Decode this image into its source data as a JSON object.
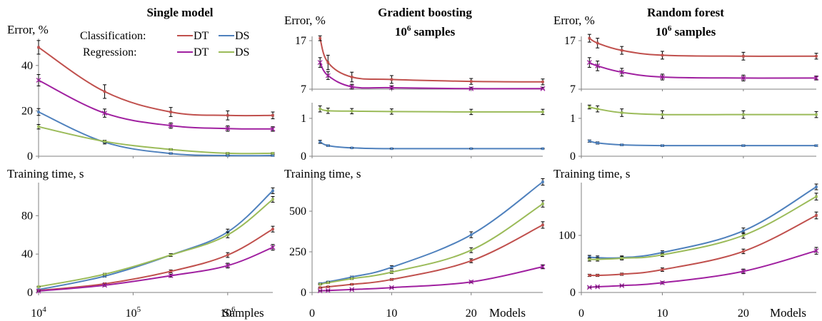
{
  "colors": {
    "DT_cls": "#C0504D",
    "DS_cls": "#4F81BD",
    "DT_reg": "#A020A0",
    "DS_reg": "#9BBB59",
    "axis": "#808080",
    "errorbar": "#000000"
  },
  "legend": {
    "classification_label": "Classification:",
    "regression_label": "Regression:",
    "dt": "DT",
    "ds": "DS"
  },
  "chart_data": [
    {
      "id": "single_error",
      "type": "line",
      "title": "Single model",
      "ylabel": "Error, %",
      "x_scale": "log",
      "x": [
        10000,
        50000,
        250000,
        1000000,
        3000000
      ],
      "xlim": [
        10000,
        3000000
      ],
      "ylim": [
        0,
        50
      ],
      "yticks": [
        0,
        20,
        40
      ],
      "grid": false,
      "legend_position": "top-right",
      "series": [
        {
          "key": "DT_cls",
          "group": "Classification",
          "name": "DT",
          "values": [
            48,
            28.5,
            19.5,
            18,
            18
          ],
          "errors": [
            3,
            3,
            2,
            2,
            1.5
          ]
        },
        {
          "key": "DS_cls",
          "group": "Classification",
          "name": "DS",
          "values": [
            19.5,
            6.2,
            1.2,
            0.3,
            0.3
          ],
          "errors": [
            1.5,
            0.8,
            0.3,
            0.3,
            0.3
          ]
        },
        {
          "key": "DT_reg",
          "group": "Regression",
          "name": "DT",
          "values": [
            33.5,
            19,
            13.5,
            12.2,
            12
          ],
          "errors": [
            2.5,
            1.8,
            1.2,
            1.2,
            1
          ]
        },
        {
          "key": "DS_reg",
          "group": "Regression",
          "name": "DS",
          "values": [
            13,
            6.5,
            3,
            1.3,
            1.3
          ],
          "errors": [
            1,
            0.5,
            0.3,
            0.3,
            0.3
          ]
        }
      ]
    },
    {
      "id": "gb_error_top",
      "type": "line",
      "title": "Gradient boosting",
      "title_line2": "samples",
      "title_base": "10",
      "title_exp": "6",
      "ylabel": "Error, %",
      "x": [
        1,
        2,
        5,
        10,
        20,
        29
      ],
      "xlim": [
        0,
        29
      ],
      "ylim": [
        7,
        17
      ],
      "yticks": [
        7,
        17
      ],
      "grid": false,
      "series": [
        {
          "key": "DT_cls",
          "name": "DT",
          "values": [
            17.5,
            12.5,
            9.5,
            9,
            8.6,
            8.5
          ],
          "errors": [
            0.5,
            1.5,
            1,
            0.8,
            0.6,
            0.6
          ]
        },
        {
          "key": "DT_reg",
          "name": "DT",
          "values": [
            12.5,
            9.8,
            7.5,
            7.3,
            7.1,
            7.1
          ],
          "errors": [
            1,
            0.8,
            0.5,
            0.4,
            0.3,
            0.3
          ]
        }
      ]
    },
    {
      "id": "gb_error_bottom",
      "type": "line",
      "x": [
        1,
        2,
        5,
        10,
        20,
        29
      ],
      "xlim": [
        0,
        29
      ],
      "ylim": [
        0,
        1.3
      ],
      "yticks": [
        0,
        1
      ],
      "grid": false,
      "series": [
        {
          "key": "DS_reg",
          "name": "DS",
          "values": [
            1.25,
            1.2,
            1.19,
            1.18,
            1.17,
            1.17
          ],
          "errors": [
            0.08,
            0.07,
            0.07,
            0.07,
            0.07,
            0.07
          ]
        },
        {
          "key": "DS_cls",
          "name": "DS",
          "values": [
            0.38,
            0.28,
            0.22,
            0.2,
            0.2,
            0.2
          ],
          "errors": [
            0.04,
            0.02,
            0.01,
            0.01,
            0.01,
            0.01
          ]
        }
      ]
    },
    {
      "id": "rf_error_top",
      "type": "line",
      "title": "Random forest",
      "title_line2": "samples",
      "title_base": "10",
      "title_exp": "6",
      "ylabel": "Error, %",
      "x": [
        1,
        2,
        5,
        10,
        20,
        29
      ],
      "xlim": [
        0,
        29
      ],
      "ylim": [
        7,
        17
      ],
      "yticks": [
        7,
        17
      ],
      "grid": false,
      "series": [
        {
          "key": "DT_cls",
          "name": "DT",
          "values": [
            17.5,
            16.5,
            15,
            14,
            13.8,
            13.8
          ],
          "errors": [
            0.8,
            1,
            0.8,
            0.8,
            0.8,
            0.6
          ]
        },
        {
          "key": "DT_reg",
          "name": "DT",
          "values": [
            12.5,
            11.8,
            10.5,
            9.5,
            9.3,
            9.3
          ],
          "errors": [
            1,
            1,
            0.8,
            0.6,
            0.6,
            0.4
          ]
        }
      ]
    },
    {
      "id": "rf_error_bottom",
      "type": "line",
      "x": [
        1,
        2,
        5,
        10,
        20,
        29
      ],
      "xlim": [
        0,
        29
      ],
      "ylim": [
        0,
        1.3
      ],
      "yticks": [
        0,
        1
      ],
      "grid": false,
      "series": [
        {
          "key": "DS_reg",
          "name": "DS",
          "values": [
            1.3,
            1.25,
            1.15,
            1.1,
            1.1,
            1.1
          ],
          "errors": [
            0.05,
            0.08,
            0.1,
            0.1,
            0.1,
            0.08
          ]
        },
        {
          "key": "DS_cls",
          "name": "DS",
          "values": [
            0.4,
            0.35,
            0.3,
            0.28,
            0.28,
            0.28
          ],
          "errors": [
            0.03,
            0.03,
            0.02,
            0.02,
            0.02,
            0.02
          ]
        }
      ]
    },
    {
      "id": "single_time",
      "type": "line",
      "ylabel": "Training time, s",
      "xlabel": "Samples",
      "x_scale": "log",
      "x": [
        10000,
        50000,
        250000,
        1000000,
        3000000
      ],
      "xlim": [
        10000,
        3000000
      ],
      "xticks": [
        {
          "base": "10",
          "exp": "4",
          "value": 10000
        },
        {
          "base": "10",
          "exp": "5",
          "value": 100000
        },
        {
          "base": "10",
          "exp": "6",
          "value": 1000000
        }
      ],
      "ylim": [
        0,
        110
      ],
      "yticks": [
        0,
        40,
        80
      ],
      "grid": false,
      "series": [
        {
          "key": "DS_cls",
          "name": "DS",
          "values": [
            3,
            17,
            39,
            63,
            106
          ],
          "errors": [
            0.5,
            1,
            1.5,
            3,
            3
          ]
        },
        {
          "key": "DS_reg",
          "name": "DS",
          "values": [
            6,
            19,
            39,
            60,
            97
          ],
          "errors": [
            0.5,
            1,
            1.5,
            3,
            3
          ]
        },
        {
          "key": "DT_cls",
          "name": "DT",
          "values": [
            2,
            9,
            22,
            39,
            66
          ],
          "errors": [
            0.5,
            1,
            1.5,
            2.5,
            3
          ]
        },
        {
          "key": "DT_reg",
          "name": "DT",
          "values": [
            1.5,
            7.5,
            17.5,
            28,
            47
          ],
          "errors": [
            0.5,
            1,
            1.5,
            2.5,
            3
          ]
        }
      ]
    },
    {
      "id": "gb_time",
      "type": "line",
      "ylabel": "Training time, s",
      "xlabel": "Models",
      "x": [
        1,
        2,
        5,
        10,
        20,
        29
      ],
      "xlim": [
        0,
        29
      ],
      "xticks": [
        0,
        10,
        20
      ],
      "ylim": [
        0,
        680
      ],
      "yticks": [
        0,
        250,
        500
      ],
      "grid": false,
      "series": [
        {
          "key": "DS_cls",
          "name": "DS",
          "values": [
            55,
            65,
            95,
            155,
            355,
            680
          ],
          "errors": [
            3,
            4,
            6,
            10,
            18,
            20
          ]
        },
        {
          "key": "DS_reg",
          "name": "DS",
          "values": [
            50,
            60,
            85,
            125,
            260,
            545
          ],
          "errors": [
            3,
            4,
            5,
            8,
            15,
            20
          ]
        },
        {
          "key": "DT_cls",
          "name": "DT",
          "values": [
            30,
            35,
            50,
            80,
            195,
            415
          ],
          "errors": [
            3,
            3,
            4,
            6,
            12,
            20
          ]
        },
        {
          "key": "DT_reg",
          "name": "DT",
          "values": [
            10,
            12,
            18,
            30,
            65,
            158
          ],
          "errors": [
            2,
            2,
            3,
            4,
            6,
            12
          ]
        }
      ]
    },
    {
      "id": "rf_time",
      "type": "line",
      "ylabel": "Training time, s",
      "xlabel": "Models",
      "x": [
        1,
        2,
        5,
        10,
        20,
        29
      ],
      "xlim": [
        0,
        29
      ],
      "xticks": [
        0,
        10,
        20
      ],
      "ylim": [
        0,
        185
      ],
      "yticks": [
        0,
        100
      ],
      "grid": false,
      "series": [
        {
          "key": "DS_cls",
          "name": "DS",
          "values": [
            62,
            61,
            61,
            70,
            108,
            185
          ],
          "errors": [
            3,
            3,
            3,
            3,
            5,
            5
          ]
        },
        {
          "key": "DS_reg",
          "name": "DS",
          "values": [
            58,
            58,
            60,
            66,
            100,
            168
          ],
          "errors": [
            3,
            3,
            3,
            3,
            5,
            6
          ]
        },
        {
          "key": "DT_cls",
          "name": "DT",
          "values": [
            30,
            30,
            32,
            40,
            72,
            135
          ],
          "errors": [
            2,
            2,
            2,
            3,
            4,
            6
          ]
        },
        {
          "key": "DT_reg",
          "name": "DT",
          "values": [
            9,
            10,
            12,
            17,
            37,
            73
          ],
          "errors": [
            1,
            1,
            1,
            2,
            4,
            6
          ]
        }
      ]
    }
  ]
}
